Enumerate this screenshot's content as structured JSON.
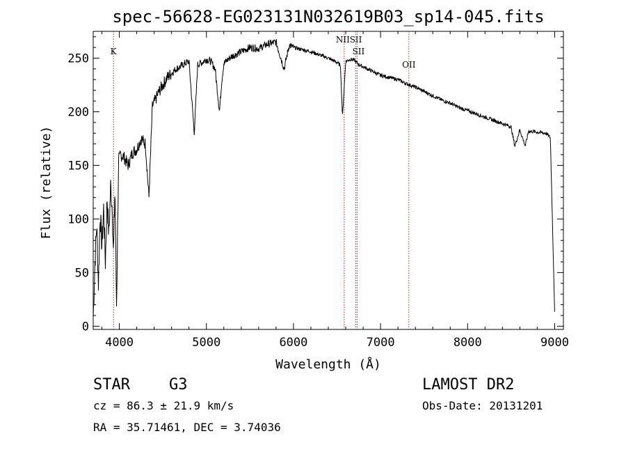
{
  "chart_data": {
    "type": "line",
    "title": "spec-56628-EG023131N032619B03_sp14-045.fits",
    "xlabel": "Wavelength (Å)",
    "ylabel": "Flux (relative)",
    "xlim": [
      3700,
      9100
    ],
    "ylim": [
      -3,
      275
    ],
    "xticks": [
      4000,
      5000,
      6000,
      7000,
      8000,
      9000
    ],
    "yticks": [
      0,
      50,
      100,
      150,
      200,
      250
    ],
    "series": [
      {
        "x": [
          3700,
          3720,
          3740,
          3760,
          3780,
          3800,
          3820,
          3840,
          3860,
          3880,
          3900,
          3920,
          3933,
          3950,
          3968,
          3990,
          4010,
          4050,
          4102,
          4150,
          4200,
          4250,
          4300,
          4340,
          4380,
          4420,
          4450,
          4500,
          4550,
          4600,
          4650,
          4700,
          4750,
          4800,
          4861,
          4900,
          4950,
          5000,
          5050,
          5100,
          5150,
          5175,
          5200,
          5250,
          5300,
          5400,
          5500,
          5600,
          5700,
          5800,
          5893,
          5950,
          6000,
          6100,
          6200,
          6300,
          6400,
          6500,
          6540,
          6563,
          6600,
          6650,
          6700,
          6750,
          6800,
          6900,
          7000,
          7100,
          7200,
          7300,
          7400,
          7500,
          7600,
          7700,
          7800,
          7900,
          8000,
          8100,
          8200,
          8300,
          8400,
          8498,
          8542,
          8600,
          8662,
          8700,
          8800,
          8900,
          8950,
          9000
        ],
        "y": [
          8,
          60,
          95,
          40,
          105,
          75,
          110,
          60,
          120,
          85,
          130,
          110,
          65,
          130,
          20,
          150,
          160,
          158,
          150,
          162,
          165,
          175,
          170,
          120,
          205,
          212,
          218,
          225,
          232,
          236,
          240,
          242,
          245,
          247,
          180,
          244,
          246,
          249,
          247,
          240,
          200,
          228,
          245,
          249,
          252,
          256,
          260,
          259,
          263,
          265,
          240,
          262,
          260,
          258,
          256,
          253,
          250,
          246,
          243,
          195,
          247,
          249,
          248,
          244,
          242,
          238,
          234,
          232,
          230,
          226,
          223,
          219,
          215,
          211,
          208,
          204,
          201,
          198,
          195,
          192,
          189,
          186,
          168,
          183,
          168,
          182,
          181,
          180,
          176,
          12
        ]
      }
    ],
    "line_marks": [
      {
        "label": "K",
        "x": 3933
      },
      {
        "label": "NII",
        "x": 6583
      },
      {
        "label": "SII",
        "x": 6716
      },
      {
        "label": "SII",
        "x": 6731
      },
      {
        "label": "OII",
        "x": 7325
      }
    ]
  },
  "info": {
    "class": "STAR",
    "subclass": "G3",
    "cz": "cz = 86.3 ± 21.9 km/s",
    "coords": "RA =  35.71461, DEC =   3.74036",
    "survey": "LAMOST DR2",
    "obs_date": "Obs-Date: 20131201"
  }
}
